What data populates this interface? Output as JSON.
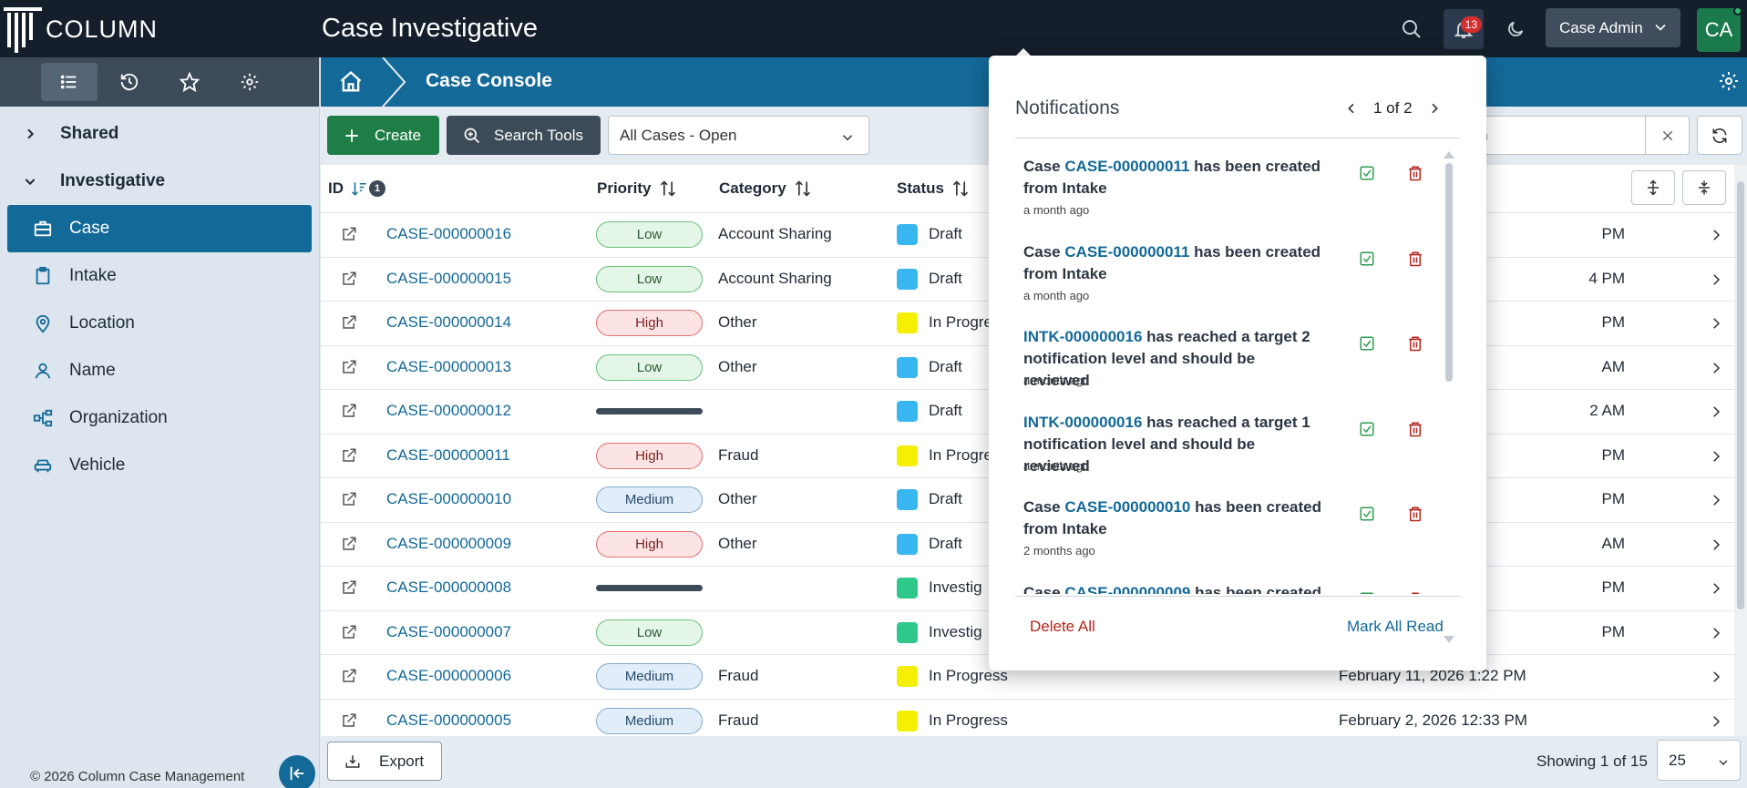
{
  "app": {
    "logo_text": "COLUMN",
    "title": "Case Investigative"
  },
  "header": {
    "notification_count": "13",
    "user_label": "Case Admin",
    "avatar_initials": "CA"
  },
  "sidebar": {
    "groups": [
      {
        "label": "Shared"
      },
      {
        "label": "Investigative"
      }
    ],
    "items": [
      {
        "label": "Case",
        "icon": "briefcase-icon"
      },
      {
        "label": "Intake",
        "icon": "clipboard-icon"
      },
      {
        "label": "Location",
        "icon": "map-pin-icon"
      },
      {
        "label": "Name",
        "icon": "person-icon"
      },
      {
        "label": "Organization",
        "icon": "org-chart-icon"
      },
      {
        "label": "Vehicle",
        "icon": "car-icon"
      }
    ],
    "copyright": "© 2026 Column Case Management"
  },
  "breadcrumb": {
    "title": "Case Console"
  },
  "toolbar": {
    "create_label": "Create",
    "search_tools_label": "Search Tools",
    "filter_value": "All Cases - Open",
    "search_value": "rch"
  },
  "table": {
    "headers": {
      "id": "ID",
      "sort_count": "1",
      "priority": "Priority",
      "category": "Category",
      "status": "Status"
    },
    "rows": [
      {
        "id": "CASE-000000016",
        "priority": "Low",
        "category": "Account Sharing",
        "status": "Draft",
        "status_color": "#38b6f0",
        "date": "PM"
      },
      {
        "id": "CASE-000000015",
        "priority": "Low",
        "category": "Account Sharing",
        "status": "Draft",
        "status_color": "#38b6f0",
        "date": "4 PM"
      },
      {
        "id": "CASE-000000014",
        "priority": "High",
        "category": "Other",
        "status": "In Progre",
        "status_color": "#f5f000",
        "date": "PM"
      },
      {
        "id": "CASE-000000013",
        "priority": "Low",
        "category": "Other",
        "status": "Draft",
        "status_color": "#38b6f0",
        "date": "AM"
      },
      {
        "id": "CASE-000000012",
        "priority": "",
        "category": "",
        "status": "Draft",
        "status_color": "#38b6f0",
        "date": "2 AM"
      },
      {
        "id": "CASE-000000011",
        "priority": "High",
        "category": "Fraud",
        "status": "In Progre",
        "status_color": "#f5f000",
        "date": "PM"
      },
      {
        "id": "CASE-000000010",
        "priority": "Medium",
        "category": "Other",
        "status": "Draft",
        "status_color": "#38b6f0",
        "date": "PM"
      },
      {
        "id": "CASE-000000009",
        "priority": "High",
        "category": "Other",
        "status": "Draft",
        "status_color": "#38b6f0",
        "date": "AM"
      },
      {
        "id": "CASE-000000008",
        "priority": "",
        "category": "",
        "status": "Investig",
        "status_color": "#2ec98a",
        "date": "PM"
      },
      {
        "id": "CASE-000000007",
        "priority": "Low",
        "category": "",
        "status": "Investig",
        "status_color": "#2ec98a",
        "date": "PM"
      },
      {
        "id": "CASE-000000006",
        "priority": "Medium",
        "category": "Fraud",
        "status": "In Progress",
        "status_color": "#f5f000",
        "date": "February 11, 2026 1:22 PM"
      },
      {
        "id": "CASE-000000005",
        "priority": "Medium",
        "category": "Fraud",
        "status": "In Progress",
        "status_color": "#f5f000",
        "date": "February 2, 2026 12:33 PM"
      }
    ]
  },
  "footer": {
    "export_label": "Export",
    "showing": "Showing 1 of 15",
    "page_size": "25"
  },
  "notifications": {
    "title": "Notifications",
    "pager": "1 of 2",
    "items": [
      {
        "pre": "Case ",
        "link": "CASE-000000011",
        "post": " has been created from Intake",
        "time": "a month ago"
      },
      {
        "pre": "Case ",
        "link": "CASE-000000011",
        "post": " has been created from Intake",
        "time": "a month ago"
      },
      {
        "pre": "",
        "link": "INTK-000000016",
        "post": " has reached a target 2 notification level and should be reviewed",
        "time": "a month ago"
      },
      {
        "pre": "",
        "link": "INTK-000000016",
        "post": " has reached a target 1 notification level and should be reviewed",
        "time": "a month ago"
      },
      {
        "pre": "Case ",
        "link": "CASE-000000010",
        "post": " has been created from Intake",
        "time": "2 months ago"
      },
      {
        "pre": "Case ",
        "link": "CASE-000000009",
        "post": " has been created",
        "time": ""
      }
    ],
    "delete_all": "Delete All",
    "mark_all_read": "Mark All Read"
  }
}
